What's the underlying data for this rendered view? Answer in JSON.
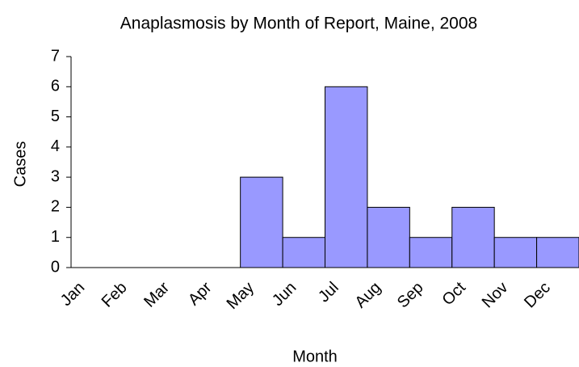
{
  "chart_data": {
    "type": "bar",
    "title": "Anaplasmosis by Month of Report, Maine, 2008",
    "x_label": "Month",
    "y_label": "Cases",
    "categories": [
      "Jan",
      "Feb",
      "Mar",
      "Apr",
      "May",
      "Jun",
      "Jul",
      "Aug",
      "Sep",
      "Oct",
      "Nov",
      "Dec"
    ],
    "values": [
      0,
      0,
      0,
      0,
      3,
      1,
      6,
      2,
      1,
      2,
      1,
      1
    ],
    "color": "#9999ff",
    "ylim": [
      0,
      7
    ],
    "yticks": [
      0,
      1,
      2,
      3,
      4,
      5,
      6,
      7
    ],
    "grid": false
  }
}
